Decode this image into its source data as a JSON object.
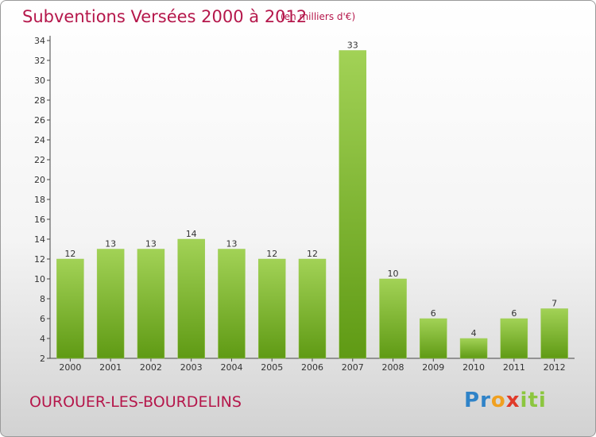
{
  "header": {
    "title": "Subventions Versées 2000 à 2012",
    "unit": "(en milliers d'€)"
  },
  "footer": {
    "commune": "OUROUER-LES-BOURDELINS",
    "logo_letters": [
      {
        "char": "P",
        "color": "#2f83c8"
      },
      {
        "char": "r",
        "color": "#2f83c8"
      },
      {
        "char": "o",
        "color": "#f0a020"
      },
      {
        "char": "x",
        "color": "#e03a2a"
      },
      {
        "char": "i",
        "color": "#8cc63f"
      },
      {
        "char": "t",
        "color": "#8cc63f"
      },
      {
        "char": "i",
        "color": "#8cc63f"
      }
    ]
  },
  "chart_data": {
    "type": "bar",
    "title": "Subventions Versées 2000 à 2012",
    "subtitle": "(en milliers d'€)",
    "categories": [
      "2000",
      "2001",
      "2002",
      "2003",
      "2004",
      "2005",
      "2006",
      "2007",
      "2008",
      "2009",
      "2010",
      "2011",
      "2012"
    ],
    "values": [
      12,
      13,
      13,
      14,
      13,
      12,
      12,
      33,
      10,
      6,
      4,
      6,
      7
    ],
    "yticks": [
      2,
      4,
      6,
      8,
      10,
      12,
      14,
      16,
      18,
      20,
      22,
      24,
      26,
      28,
      30,
      32,
      34
    ],
    "ylim": [
      2,
      34
    ],
    "bar_color": "#7ab52e",
    "grid": false,
    "legend": "none"
  }
}
